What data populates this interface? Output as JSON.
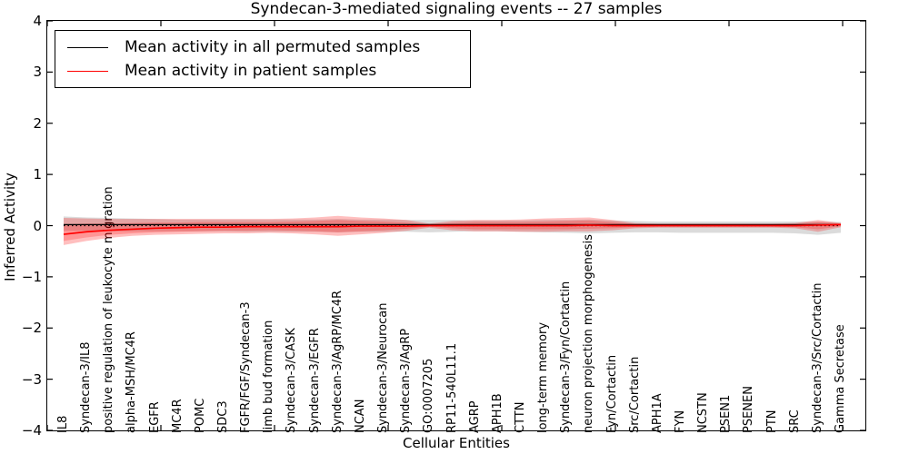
{
  "title": "Syndecan-3-mediated signaling events -- 27 samples",
  "axes": {
    "x_label": "Cellular Entities",
    "y_label": "Inferred Activity",
    "y_ticks": [
      "4",
      "3",
      "2",
      "1",
      "0",
      "−1",
      "−2",
      "−3",
      "−4"
    ],
    "y_min": -4,
    "y_max": 4
  },
  "legend": [
    {
      "label": "Mean activity in all permuted samples",
      "color": "#000000"
    },
    {
      "label": "Mean activity in patient samples",
      "color": "#ff0000"
    }
  ],
  "chart_data": {
    "type": "line",
    "title": "Syndecan-3-mediated signaling events -- 27 samples",
    "xlabel": "Cellular Entities",
    "ylabel": "Inferred Activity",
    "ylim": [
      -4,
      4
    ],
    "grid": false,
    "legend_position": "upper left",
    "x_axis_units": 36,
    "x_tick_positions": [
      0,
      5,
      10,
      15,
      20,
      25,
      30,
      35
    ],
    "categories": [
      "IL8",
      "Syndecan-3/IL8",
      "positive regulation of leukocyte migration",
      "alpha-MSH/MC4R",
      "EGFR",
      "MC4R",
      "POMC",
      "SDC3",
      "FGFR/FGF/Syndecan-3",
      "limb bud formation",
      "Syndecan-3/CASK",
      "Syndecan-3/EGFR",
      "Syndecan-3/AgRP/MC4R",
      "NCAN",
      "Syndecan-3/Neurocan",
      "Syndecan-3/AgRP",
      "GO:0007205",
      "RP11-540L11.1",
      "AGRP",
      "APH1B",
      "CTTN",
      "long-term memory",
      "Syndecan-3/Fyn/Cortactin",
      "neuron projection morphogenesis",
      "Fyn/Cortactin",
      "Src/Cortactin",
      "APH1A",
      "FYN",
      "NCSTN",
      "PSEN1",
      "PSENEN",
      "PTN",
      "SRC",
      "Syndecan-3/Src/Cortactin",
      "Gamma Secretase"
    ],
    "series": [
      {
        "name": "Mean activity in all permuted samples",
        "color": "#000000",
        "values": [
          0.02,
          0.02,
          0.02,
          0.02,
          0.02,
          0.02,
          0.02,
          0.02,
          0.02,
          0.02,
          0.02,
          0.02,
          0.02,
          0.02,
          0.02,
          0.02,
          0.02,
          0.02,
          0.02,
          0.02,
          0.02,
          0.02,
          0.02,
          0.02,
          0.02,
          0.02,
          0.02,
          0.02,
          0.02,
          0.02,
          0.02,
          0.02,
          0.02,
          0.02,
          0.02
        ]
      },
      {
        "name": "Mean activity in patient samples",
        "color": "#ff0000",
        "values": [
          -0.17,
          -0.12,
          -0.09,
          -0.07,
          -0.05,
          -0.04,
          -0.03,
          -0.03,
          -0.02,
          -0.02,
          -0.02,
          -0.02,
          -0.02,
          -0.01,
          -0.01,
          -0.01,
          0,
          0,
          0,
          0,
          0,
          0,
          0,
          0.01,
          0,
          0,
          0,
          0,
          0,
          0,
          0,
          0,
          0,
          0.01,
          0.02
        ]
      }
    ],
    "zero_line": {
      "value": 0,
      "style": "dotted",
      "color": "#000000"
    },
    "bands": [
      {
        "name": "permuted-samples-std-band",
        "color": "rgba(0,0,0,0.14)",
        "upper": [
          0.18,
          0.16,
          0.15,
          0.14,
          0.13,
          0.12,
          0.12,
          0.12,
          0.12,
          0.12,
          0.12,
          0.12,
          0.13,
          0.12,
          0.12,
          0.11,
          0.11,
          0.11,
          0.1,
          0.1,
          0.1,
          0.11,
          0.11,
          0.12,
          0.1,
          0.09,
          0.08,
          0.08,
          0.08,
          0.08,
          0.08,
          0.08,
          0.08,
          0.08,
          0.07
        ],
        "lower": [
          -0.1,
          -0.1,
          -0.11,
          -0.11,
          -0.11,
          -0.11,
          -0.11,
          -0.11,
          -0.12,
          -0.12,
          -0.12,
          -0.12,
          -0.13,
          -0.12,
          -0.12,
          -0.12,
          -0.13,
          -0.12,
          -0.11,
          -0.11,
          -0.12,
          -0.13,
          -0.14,
          -0.15,
          -0.14,
          -0.13,
          -0.13,
          -0.14,
          -0.14,
          -0.14,
          -0.14,
          -0.14,
          -0.15,
          -0.18,
          -0.14
        ]
      },
      {
        "name": "patient-samples-std-band-outer",
        "color": "rgba(255,0,0,0.25)",
        "upper": [
          0.15,
          0.14,
          0.13,
          0.13,
          0.13,
          0.13,
          0.13,
          0.13,
          0.13,
          0.13,
          0.14,
          0.16,
          0.19,
          0.16,
          0.14,
          0.11,
          0.04,
          0.09,
          0.11,
          0.11,
          0.12,
          0.14,
          0.15,
          0.16,
          0.11,
          0.05,
          0.04,
          0.04,
          0.04,
          0.04,
          0.04,
          0.04,
          0.05,
          0.11,
          0.05
        ],
        "lower": [
          -0.38,
          -0.3,
          -0.24,
          -0.2,
          -0.18,
          -0.17,
          -0.16,
          -0.15,
          -0.15,
          -0.14,
          -0.15,
          -0.17,
          -0.2,
          -0.17,
          -0.14,
          -0.1,
          -0.04,
          -0.09,
          -0.11,
          -0.11,
          -0.12,
          -0.12,
          -0.11,
          -0.11,
          -0.09,
          -0.05,
          -0.04,
          -0.04,
          -0.04,
          -0.04,
          -0.04,
          -0.04,
          -0.05,
          -0.12,
          -0.03
        ]
      },
      {
        "name": "patient-samples-std-band-inner",
        "color": "rgba(255,0,0,0.22)",
        "upper": [
          0.02,
          0.04,
          0.04,
          0.05,
          0.06,
          0.06,
          0.07,
          0.07,
          0.07,
          0.07,
          0.08,
          0.09,
          0.11,
          0.09,
          0.08,
          0.06,
          0.02,
          0.05,
          0.07,
          0.07,
          0.07,
          0.08,
          0.09,
          0.1,
          0.07,
          0.03,
          0.02,
          0.02,
          0.02,
          0.02,
          0.02,
          0.02,
          0.03,
          0.07,
          0.04
        ],
        "lower": [
          -0.3,
          -0.23,
          -0.18,
          -0.15,
          -0.13,
          -0.12,
          -0.11,
          -0.1,
          -0.1,
          -0.09,
          -0.1,
          -0.11,
          -0.13,
          -0.11,
          -0.09,
          -0.06,
          -0.02,
          -0.05,
          -0.07,
          -0.07,
          -0.07,
          -0.07,
          -0.07,
          -0.06,
          -0.05,
          -0.03,
          -0.02,
          -0.02,
          -0.02,
          -0.02,
          -0.02,
          -0.02,
          -0.03,
          -0.07,
          -0.01
        ]
      }
    ]
  }
}
